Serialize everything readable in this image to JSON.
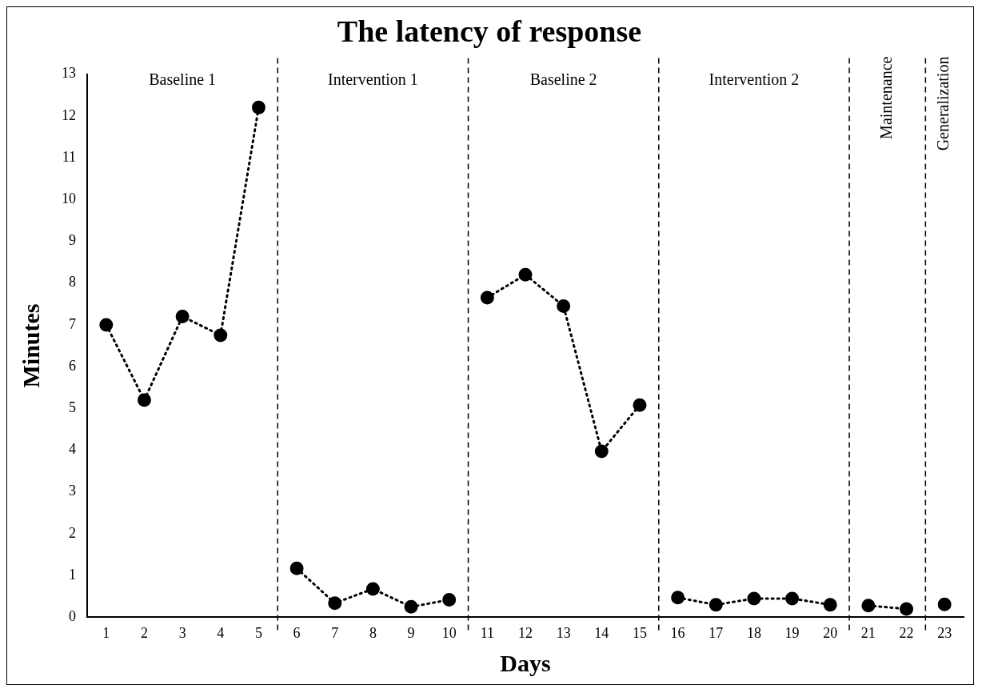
{
  "chart_data": {
    "type": "line",
    "title": "The latency of response",
    "xlabel": "Days",
    "ylabel": "Minutes",
    "xlim": [
      0.5,
      23.5
    ],
    "xticks": [
      1,
      2,
      3,
      4,
      5,
      6,
      7,
      8,
      9,
      10,
      11,
      12,
      13,
      14,
      15,
      16,
      17,
      18,
      19,
      20,
      21,
      22,
      23
    ],
    "ylim": [
      0,
      13
    ],
    "yticks": [
      0,
      1,
      2,
      3,
      4,
      5,
      6,
      7,
      8,
      9,
      10,
      11,
      12,
      13
    ],
    "series": [
      {
        "color": "#000000",
        "x": [
          1,
          2,
          3,
          4,
          5
        ],
        "values": [
          7.0,
          5.2,
          7.2,
          6.75,
          12.2
        ]
      },
      {
        "color": "#000000",
        "x": [
          6,
          7,
          8,
          9,
          10
        ],
        "values": [
          1.17,
          0.34,
          0.68,
          0.25,
          0.42
        ]
      },
      {
        "color": "#000000",
        "x": [
          11,
          12,
          13,
          14,
          15
        ],
        "values": [
          7.65,
          8.2,
          7.45,
          3.97,
          5.08
        ]
      },
      {
        "color": "#000000",
        "x": [
          16,
          17,
          18,
          19,
          20
        ],
        "values": [
          0.47,
          0.3,
          0.45,
          0.45,
          0.3
        ]
      },
      {
        "color": "#000000",
        "x": [
          21,
          22
        ],
        "values": [
          0.28,
          0.2
        ]
      },
      {
        "color": "#000000",
        "x": [
          23
        ],
        "values": [
          0.31
        ]
      }
    ],
    "ref_lines": [
      {
        "axis": "x",
        "value": 5.5,
        "color": "#000000",
        "line_style": "dashed"
      },
      {
        "axis": "x",
        "value": 10.5,
        "color": "#000000",
        "line_style": "dashed"
      },
      {
        "axis": "x",
        "value": 15.5,
        "color": "#000000",
        "line_style": "dashed"
      },
      {
        "axis": "x",
        "value": 20.5,
        "color": "#000000",
        "line_style": "dashed"
      },
      {
        "axis": "x",
        "value": 22.5,
        "color": "#000000",
        "line_style": "dashed"
      }
    ],
    "annotations": [
      "Baseline 1",
      "Intervention 1",
      "Baseline 2",
      "Intervention 2",
      "Maintenance",
      "Generalization"
    ],
    "marker": "circle",
    "line_style": "dotted",
    "grid": false,
    "legend": false
  }
}
